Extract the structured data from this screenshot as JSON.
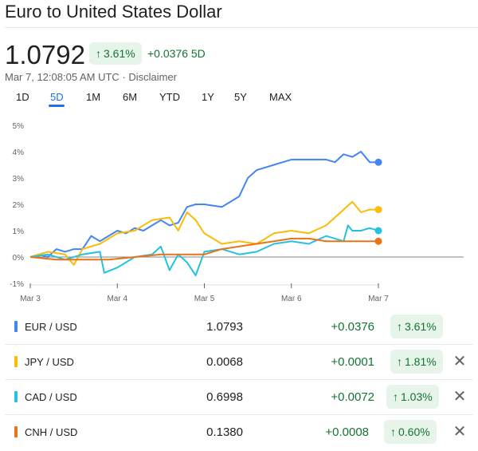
{
  "header": {
    "title": "Euro to United States Dollar",
    "price": "1.0792",
    "change_pct": "3.61%",
    "change_abs": "+0.0376 5D",
    "timestamp": "Mar 7, 12:08:05 AM UTC",
    "separator": " · ",
    "disclaimer": "Disclaimer"
  },
  "ranges": [
    "1D",
    "5D",
    "1M",
    "6M",
    "YTD",
    "1Y",
    "5Y",
    "MAX"
  ],
  "selected_range": "5D",
  "icons": {
    "up_arrow": "arrow-up-icon",
    "close": "close-icon"
  },
  "chart_data": {
    "type": "line",
    "x_labels": [
      "Mar 3",
      "Mar 4",
      "Mar 5",
      "Mar 6",
      "Mar 7"
    ],
    "y_ticks": [
      "5%",
      "4%",
      "3%",
      "2%",
      "1%",
      "0%",
      "-1%"
    ],
    "ylim": [
      -1,
      5
    ],
    "baseline": 0,
    "series": [
      {
        "name": "EUR / USD",
        "color": "#4285f4",
        "x": [
          0,
          0.1,
          0.2,
          0.3,
          0.4,
          0.5,
          0.6,
          0.7,
          0.8,
          0.9,
          1.0,
          1.1,
          1.2,
          1.3,
          1.4,
          1.5,
          1.6,
          1.7,
          1.8,
          1.9,
          2.0,
          2.2,
          2.4,
          2.5,
          2.6,
          2.7,
          2.8,
          2.9,
          3.0,
          3.2,
          3.4,
          3.5,
          3.6,
          3.7,
          3.8,
          3.9,
          4.0
        ],
        "values": [
          0.0,
          0.1,
          0.0,
          0.3,
          0.2,
          0.3,
          0.3,
          0.8,
          0.6,
          0.8,
          1.0,
          0.9,
          1.1,
          1.0,
          1.2,
          1.4,
          1.2,
          1.3,
          1.9,
          2.0,
          2.0,
          1.9,
          2.3,
          3.0,
          3.3,
          3.4,
          3.5,
          3.6,
          3.7,
          3.7,
          3.7,
          3.6,
          3.9,
          3.8,
          4.0,
          3.6,
          3.6
        ]
      },
      {
        "name": "JPY / USD",
        "color": "#fbbc04",
        "x": [
          0,
          0.2,
          0.4,
          0.5,
          0.6,
          0.8,
          1.0,
          1.2,
          1.4,
          1.6,
          1.7,
          1.8,
          1.9,
          2.0,
          2.2,
          2.4,
          2.6,
          2.8,
          3.0,
          3.2,
          3.4,
          3.6,
          3.7,
          3.8,
          3.9,
          4.0
        ],
        "values": [
          0.0,
          0.2,
          0.1,
          -0.3,
          0.3,
          0.5,
          0.9,
          1.0,
          1.4,
          1.5,
          1.0,
          1.7,
          1.4,
          0.9,
          0.5,
          0.6,
          0.5,
          0.9,
          1.0,
          0.9,
          1.2,
          1.8,
          2.1,
          1.7,
          1.8,
          1.8
        ]
      },
      {
        "name": "CAD / USD",
        "color": "#24c1e0",
        "x": [
          0,
          0.2,
          0.4,
          0.6,
          0.8,
          0.85,
          1.0,
          1.2,
          1.4,
          1.5,
          1.6,
          1.7,
          1.8,
          1.9,
          2.0,
          2.2,
          2.4,
          2.6,
          2.8,
          3.0,
          3.2,
          3.4,
          3.5,
          3.6,
          3.65,
          3.7,
          3.8,
          3.9,
          4.0
        ],
        "values": [
          0.0,
          0.1,
          -0.1,
          0.1,
          0.2,
          -0.6,
          -0.4,
          0.0,
          0.1,
          0.4,
          -0.5,
          0.1,
          -0.2,
          -0.7,
          0.2,
          0.3,
          0.1,
          0.2,
          0.5,
          0.6,
          0.5,
          0.8,
          0.7,
          0.6,
          1.2,
          1.0,
          1.0,
          1.1,
          1.0
        ]
      },
      {
        "name": "CNH / USD",
        "color": "#ea7317",
        "x": [
          0,
          0.3,
          0.6,
          0.9,
          1.2,
          1.5,
          1.8,
          2.0,
          2.2,
          2.4,
          2.6,
          2.8,
          3.0,
          3.2,
          3.4,
          3.6,
          3.8,
          4.0
        ],
        "values": [
          0.0,
          -0.1,
          -0.1,
          -0.1,
          0.0,
          0.1,
          0.1,
          0.1,
          0.3,
          0.4,
          0.5,
          0.6,
          0.7,
          0.7,
          0.6,
          0.6,
          0.6,
          0.6
        ]
      }
    ]
  },
  "rows": [
    {
      "pair": "EUR / USD",
      "color": "#4285f4",
      "rate": "1.0793",
      "abs": "+0.0376",
      "pct": "3.61%",
      "removable": false
    },
    {
      "pair": "JPY / USD",
      "color": "#fbbc04",
      "rate": "0.0068",
      "abs": "+0.0001",
      "pct": "1.81%",
      "removable": true
    },
    {
      "pair": "CAD / USD",
      "color": "#24c1e0",
      "rate": "0.6998",
      "abs": "+0.0072",
      "pct": "1.03%",
      "removable": true
    },
    {
      "pair": "CNH / USD",
      "color": "#ea7317",
      "rate": "0.1380",
      "abs": "+0.0008",
      "pct": "0.60%",
      "removable": true
    }
  ]
}
